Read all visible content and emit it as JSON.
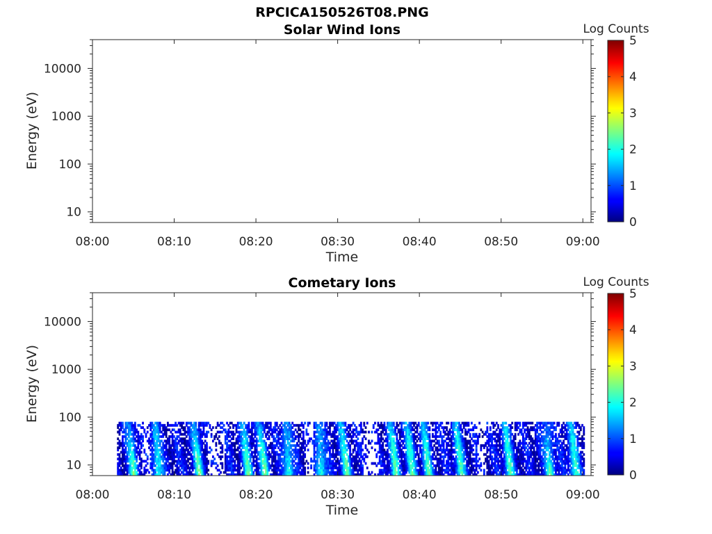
{
  "figure": {
    "title": "RPCICA150526T08.PNG"
  },
  "chart_data": [
    {
      "type": "heatmap",
      "title": "Solar Wind Ions",
      "xlabel": "Time",
      "ylabel": "Energy (eV)",
      "x_ticks": [
        "08:00",
        "08:10",
        "08:20",
        "08:30",
        "08:40",
        "08:50",
        "09:00"
      ],
      "xlim": [
        "08:00",
        "09:01"
      ],
      "y_scale": "log",
      "y_ticks": [
        10,
        100,
        1000,
        10000
      ],
      "y_tick_labels": [
        "10",
        "100",
        "1000",
        "10000"
      ],
      "ylim": [
        6,
        40000
      ],
      "colorbar": {
        "title": "Log Counts",
        "ticks": [
          0,
          1,
          2,
          3,
          4,
          5
        ],
        "tick_labels": [
          "0",
          "1",
          "2",
          "3",
          "4",
          "5"
        ],
        "colormap": "jet",
        "range": [
          0,
          5
        ]
      },
      "data": "empty"
    },
    {
      "type": "heatmap",
      "title": "Cometary Ions",
      "xlabel": "Time",
      "ylabel": "Energy (eV)",
      "x_ticks": [
        "08:00",
        "08:10",
        "08:20",
        "08:30",
        "08:40",
        "08:50",
        "09:00"
      ],
      "xlim": [
        "08:00",
        "09:01"
      ],
      "y_scale": "log",
      "y_ticks": [
        10,
        100,
        1000,
        10000
      ],
      "y_tick_labels": [
        "10",
        "100",
        "1000",
        "10000"
      ],
      "ylim": [
        6,
        40000
      ],
      "colorbar": {
        "title": "Log Counts",
        "ticks": [
          0,
          1,
          2,
          3,
          4,
          5
        ],
        "tick_labels": [
          "0",
          "1",
          "2",
          "3",
          "4",
          "5"
        ],
        "colormap": "jet",
        "range": [
          0,
          5
        ]
      },
      "data_time_range": [
        "08:03",
        "09:00"
      ],
      "data_energy_range": [
        6,
        80
      ],
      "gaps": [
        [
          "08:06",
          "08:07"
        ],
        [
          "08:14",
          "08:16"
        ],
        [
          "08:26",
          "08:27"
        ],
        [
          "08:33",
          "08:35"
        ],
        [
          "08:47",
          "08:48"
        ]
      ],
      "peak_times": [
        "08:05",
        "08:08",
        "08:13",
        "08:19",
        "08:21",
        "08:24",
        "08:28",
        "08:31",
        "08:37",
        "08:39",
        "08:41",
        "08:45",
        "08:51",
        "08:56",
        "08:59"
      ]
    }
  ]
}
